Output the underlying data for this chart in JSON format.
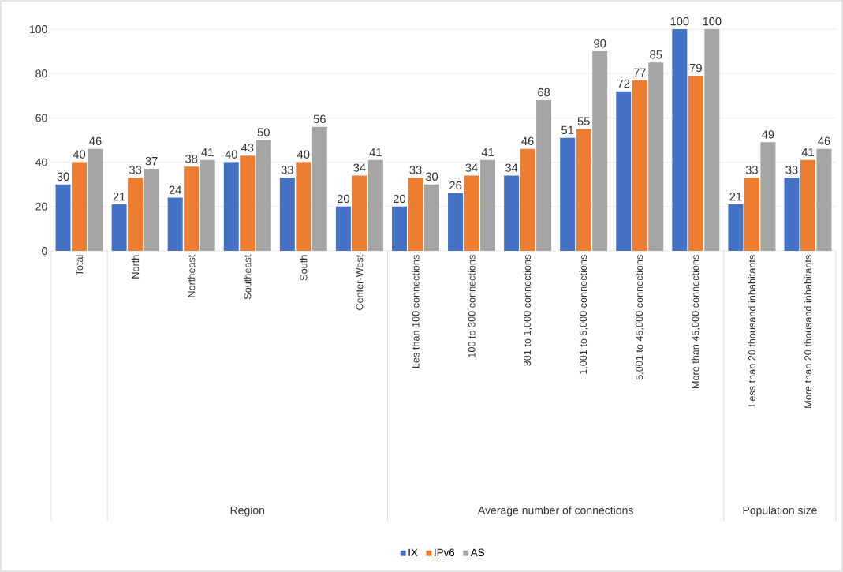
{
  "chart_data": {
    "type": "bar",
    "categories": [
      "Total",
      "North",
      "Northeast",
      "Southeast",
      "South",
      "Center-West",
      "Les than 100 connections",
      "100 to 300 connections",
      "301 to 1,000 connections",
      "1,001 to 5,000 connections",
      "5,001 to 45,000 connections",
      "More than 45,000 connections",
      "Less than 20 thousand inhabitants",
      "More than 20 thousand inhabitants"
    ],
    "series": [
      {
        "name": "IX",
        "color": "#4472c4",
        "values": [
          30,
          21,
          24,
          40,
          33,
          20,
          20,
          26,
          34,
          51,
          72,
          100,
          21,
          33
        ]
      },
      {
        "name": "IPv6",
        "color": "#ed7d31",
        "values": [
          40,
          33,
          38,
          43,
          40,
          34,
          33,
          34,
          46,
          55,
          77,
          79,
          33,
          41
        ]
      },
      {
        "name": "AS",
        "color": "#a5a5a5",
        "values": [
          46,
          37,
          41,
          50,
          56,
          41,
          30,
          41,
          68,
          90,
          85,
          100,
          49,
          46
        ]
      }
    ],
    "annotations": [
      "Region",
      "Average number of connections",
      "Population size"
    ],
    "ylim": [
      0,
      100
    ],
    "yticks": [
      0,
      20,
      40,
      60,
      80,
      100
    ],
    "grid": "y",
    "legend": "bottom",
    "data_labels": true
  }
}
